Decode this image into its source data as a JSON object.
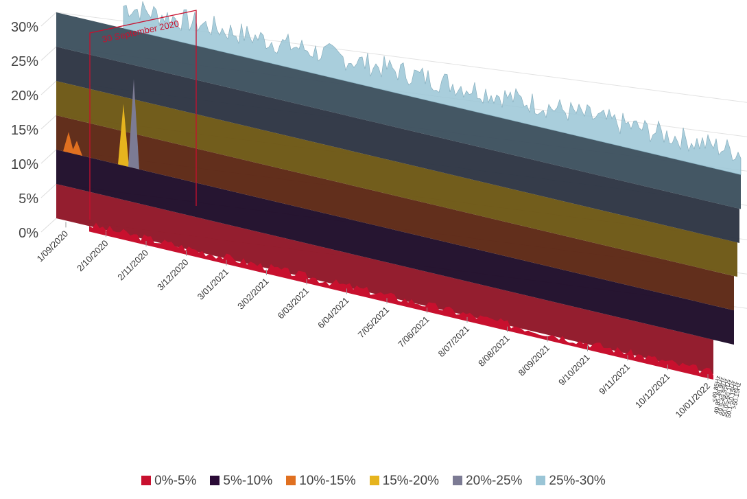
{
  "chart_data": {
    "type": "area",
    "title": "",
    "xlabel": "",
    "ylabel": "",
    "y_tick_labels": [
      "0%",
      "5%",
      "10%",
      "15%",
      "20%",
      "25%",
      "30%"
    ],
    "ylim": [
      0,
      30
    ],
    "x_tick_labels": [
      "1/09/2020",
      "2/10/2020",
      "2/11/2020",
      "3/12/2020",
      "3/01/2021",
      "3/02/2021",
      "6/03/2021",
      "6/04/2021",
      "7/05/2021",
      "7/06/2021",
      "8/07/2021",
      "8/08/2021",
      "8/09/2021",
      "9/10/2021",
      "9/11/2021",
      "10/12/2021",
      "10/01/2022"
    ],
    "depth_labels": [
      "<49.85Hz",
      "49.85-49.9Hz",
      "49.9-49.95Hz",
      "50.05-50.1Hz",
      "50.1-50.15Hz",
      ">50.15Hz"
    ],
    "annotation": "30 September 2020",
    "legend_placement": "bottom",
    "series": [
      {
        "name": "0%-5%",
        "color": "#C8102E"
      },
      {
        "name": "5%-10%",
        "color": "#2A0B36"
      },
      {
        "name": "10%-15%",
        "color": "#E07020"
      },
      {
        "name": "15%-20%",
        "color": "#E6B41E"
      },
      {
        "name": "20%-25%",
        "color": "#7C7B94"
      },
      {
        "name": "25%-30%",
        "color": "#9AC5D6"
      }
    ]
  }
}
